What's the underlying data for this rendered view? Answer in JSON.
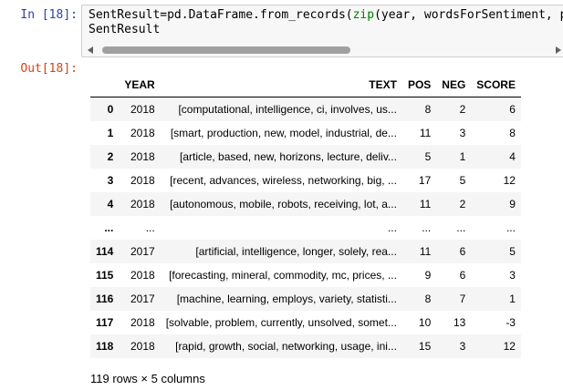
{
  "cell_in": {
    "prompt": "In [18]:",
    "code_line1_var": "SentResult",
    "code_line1_eq": "=pd.DataFrame.from_records(",
    "code_line1_kw": "zip",
    "code_line1_rest": "(year, wordsForSentiment, posScore",
    "code_line2": "SentResult"
  },
  "cell_out": {
    "prompt": "Out[18]:"
  },
  "table": {
    "columns": [
      "",
      "YEAR",
      "TEXT",
      "POS",
      "NEG",
      "SCORE"
    ],
    "rows": [
      {
        "index": "0",
        "year": "2018",
        "text": "[computational, intelligence, ci, involves, us...",
        "pos": "8",
        "neg": "2",
        "score": "6"
      },
      {
        "index": "1",
        "year": "2018",
        "text": "[smart, production, new, model, industrial, de...",
        "pos": "11",
        "neg": "3",
        "score": "8"
      },
      {
        "index": "2",
        "year": "2018",
        "text": "[article, based, new, horizons, lecture, deliv...",
        "pos": "5",
        "neg": "1",
        "score": "4"
      },
      {
        "index": "3",
        "year": "2018",
        "text": "[recent, advances, wireless, networking, big, ...",
        "pos": "17",
        "neg": "5",
        "score": "12"
      },
      {
        "index": "4",
        "year": "2018",
        "text": "[autonomous, mobile, robots, receiving, lot, a...",
        "pos": "11",
        "neg": "2",
        "score": "9"
      },
      {
        "index": "...",
        "year": "...",
        "text": "...",
        "pos": "...",
        "neg": "...",
        "score": "..."
      },
      {
        "index": "114",
        "year": "2017",
        "text": "[artificial, intelligence, longer, solely, rea...",
        "pos": "11",
        "neg": "6",
        "score": "5"
      },
      {
        "index": "115",
        "year": "2018",
        "text": "[forecasting, mineral, commodity, mc, prices, ...",
        "pos": "9",
        "neg": "6",
        "score": "3"
      },
      {
        "index": "116",
        "year": "2017",
        "text": "[machine, learning, employs, variety, statisti...",
        "pos": "8",
        "neg": "7",
        "score": "1"
      },
      {
        "index": "117",
        "year": "2018",
        "text": "[solvable, problem, currently, unsolved, somet...",
        "pos": "10",
        "neg": "13",
        "score": "-3"
      },
      {
        "index": "118",
        "year": "2018",
        "text": "[rapid, growth, social, networking, usage, ini...",
        "pos": "15",
        "neg": "3",
        "score": "12"
      }
    ],
    "footer": "119 rows × 5 columns"
  },
  "icons": {
    "scroll_left": "arrow-left-icon",
    "scroll_right": "arrow-right-icon"
  }
}
